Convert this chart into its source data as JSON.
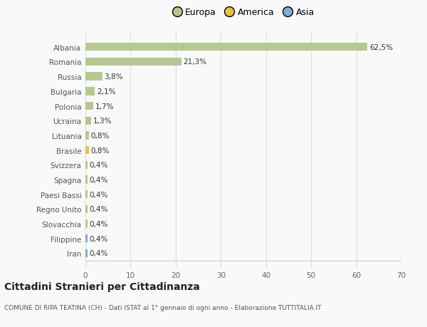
{
  "categories": [
    "Albania",
    "Romania",
    "Russia",
    "Bulgaria",
    "Polonia",
    "Ucraina",
    "Lituania",
    "Brasile",
    "Svizzera",
    "Spagna",
    "Paesi Bassi",
    "Regno Unito",
    "Slovacchia",
    "Filippine",
    "Iran"
  ],
  "values": [
    62.5,
    21.3,
    3.8,
    2.1,
    1.7,
    1.3,
    0.8,
    0.8,
    0.4,
    0.4,
    0.4,
    0.4,
    0.4,
    0.4,
    0.4
  ],
  "labels": [
    "62,5%",
    "21,3%",
    "3,8%",
    "2,1%",
    "1,7%",
    "1,3%",
    "0,8%",
    "0,8%",
    "0,4%",
    "0,4%",
    "0,4%",
    "0,4%",
    "0,4%",
    "0,4%",
    "0,4%"
  ],
  "colors": [
    "#b5c98e",
    "#b5c98e",
    "#b5c98e",
    "#b5c98e",
    "#b5c98e",
    "#b5c98e",
    "#b5c98e",
    "#f0c040",
    "#b5c98e",
    "#b5c98e",
    "#b5c98e",
    "#b5c98e",
    "#b5c98e",
    "#7bafd4",
    "#7bafd4"
  ],
  "legend": [
    {
      "label": "Europa",
      "color": "#b5c98e"
    },
    {
      "label": "America",
      "color": "#f0c040"
    },
    {
      "label": "Asia",
      "color": "#7bafd4"
    }
  ],
  "xlim": [
    0,
    70
  ],
  "xticks": [
    0,
    10,
    20,
    30,
    40,
    50,
    60,
    70
  ],
  "title": "Cittadini Stranieri per Cittadinanza",
  "subtitle": "COMUNE DI RIPA TEATINA (CH) - Dati ISTAT al 1° gennaio di ogni anno - Elaborazione TUTTITALIA.IT",
  "bg_color": "#f9f9f9",
  "grid_color": "#dddddd",
  "bar_height": 0.55
}
